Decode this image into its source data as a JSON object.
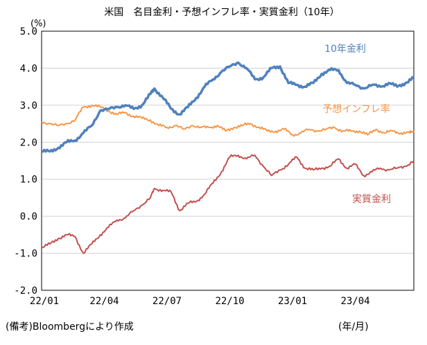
{
  "chart_data": {
    "type": "line",
    "title": "米国　名目金利・予想インフレ率・実質金利（10年）",
    "ylabel": "(%)",
    "xlabel": "(年/月)",
    "source_note": "(備考)Bloombergにより作成",
    "ylim": [
      -2.0,
      5.0
    ],
    "yticks": [
      "5.0",
      "4.0",
      "3.0",
      "2.0",
      "1.0",
      "0.0",
      "-1.0",
      "-2.0"
    ],
    "ytick_values": [
      5,
      4,
      3,
      2,
      1,
      0,
      -1,
      -2
    ],
    "xlim": [
      0,
      17.8
    ],
    "xticks": [
      "22/01",
      "22/04",
      "22/07",
      "22/10",
      "23/01",
      "23/04"
    ],
    "xtick_positions": [
      0,
      3,
      6,
      9,
      12,
      15
    ],
    "series": [
      {
        "name": "10年金利",
        "color": "#4f81bd",
        "x": [
          0,
          0.4,
          0.8,
          1.2,
          1.6,
          2.0,
          2.4,
          2.8,
          3.2,
          3.6,
          4.0,
          4.4,
          4.8,
          5.2,
          5.4,
          5.8,
          6.2,
          6.6,
          7.0,
          7.4,
          7.8,
          8.2,
          8.6,
          9.0,
          9.4,
          9.8,
          10.2,
          10.6,
          11.0,
          11.4,
          11.8,
          12.2,
          12.6,
          13.0,
          13.4,
          13.8,
          14.2,
          14.6,
          15.0,
          15.4,
          15.8,
          16.2,
          16.6,
          17.0,
          17.4,
          17.8
        ],
        "values": [
          1.75,
          1.75,
          1.85,
          2.0,
          2.05,
          2.25,
          2.45,
          2.85,
          2.9,
          2.95,
          3.0,
          2.9,
          3.0,
          3.3,
          3.45,
          3.2,
          2.9,
          2.75,
          2.95,
          3.2,
          3.5,
          3.7,
          3.9,
          4.05,
          4.15,
          4.0,
          3.7,
          3.75,
          4.0,
          4.05,
          3.6,
          3.55,
          3.5,
          3.6,
          3.85,
          3.95,
          3.95,
          3.6,
          3.55,
          3.45,
          3.55,
          3.5,
          3.6,
          3.5,
          3.6,
          3.75
        ]
      },
      {
        "name": "予想インフレ率",
        "color": "#f79646",
        "x": [
          0,
          0.4,
          0.8,
          1.2,
          1.6,
          2.0,
          2.4,
          2.8,
          3.2,
          3.6,
          4.0,
          4.4,
          4.8,
          5.2,
          5.6,
          6.0,
          6.4,
          6.8,
          7.2,
          7.6,
          8.0,
          8.4,
          8.8,
          9.2,
          9.6,
          10.0,
          10.4,
          10.8,
          11.2,
          11.6,
          12.0,
          12.4,
          12.8,
          13.2,
          13.6,
          14.0,
          14.4,
          14.8,
          15.2,
          15.6,
          16.0,
          16.4,
          16.8,
          17.2,
          17.6,
          17.8
        ],
        "values": [
          2.55,
          2.5,
          2.45,
          2.5,
          2.6,
          2.95,
          3.0,
          2.95,
          2.85,
          2.75,
          2.8,
          2.7,
          2.65,
          2.6,
          2.45,
          2.4,
          2.45,
          2.35,
          2.45,
          2.4,
          2.4,
          2.45,
          2.3,
          2.4,
          2.45,
          2.5,
          2.4,
          2.3,
          2.3,
          2.35,
          2.2,
          2.25,
          2.35,
          2.3,
          2.35,
          2.4,
          2.3,
          2.3,
          2.3,
          2.2,
          2.35,
          2.25,
          2.3,
          2.25,
          2.25,
          2.3
        ]
      },
      {
        "name": "実質金利",
        "color": "#c0504d",
        "x": [
          0,
          0.4,
          0.8,
          1.2,
          1.6,
          2.0,
          2.4,
          2.8,
          3.2,
          3.6,
          4.0,
          4.4,
          4.8,
          5.2,
          5.4,
          5.8,
          6.2,
          6.6,
          7.0,
          7.4,
          7.8,
          8.2,
          8.6,
          9.0,
          9.4,
          9.8,
          10.2,
          10.6,
          11.0,
          11.4,
          11.8,
          12.2,
          12.6,
          13.0,
          13.4,
          13.8,
          14.2,
          14.6,
          15.0,
          15.4,
          15.8,
          16.2,
          16.6,
          17.0,
          17.4,
          17.8
        ],
        "values": [
          -0.85,
          -0.75,
          -0.6,
          -0.5,
          -0.55,
          -1.0,
          -0.75,
          -0.5,
          -0.3,
          -0.1,
          -0.05,
          0.15,
          0.3,
          0.5,
          0.75,
          0.7,
          0.65,
          0.15,
          0.35,
          0.4,
          0.6,
          0.9,
          1.2,
          1.6,
          1.65,
          1.55,
          1.65,
          1.35,
          1.1,
          1.25,
          1.4,
          1.6,
          1.3,
          1.25,
          1.3,
          1.35,
          1.55,
          1.3,
          1.4,
          1.1,
          1.2,
          1.3,
          1.25,
          1.3,
          1.35,
          1.5
        ]
      }
    ],
    "series_labels": [
      {
        "text": "10年金利",
        "color": "#4f81bd"
      },
      {
        "text": "予想インフレ率",
        "color": "#f79646"
      },
      {
        "text": "実質金利",
        "color": "#c0504d"
      }
    ]
  }
}
